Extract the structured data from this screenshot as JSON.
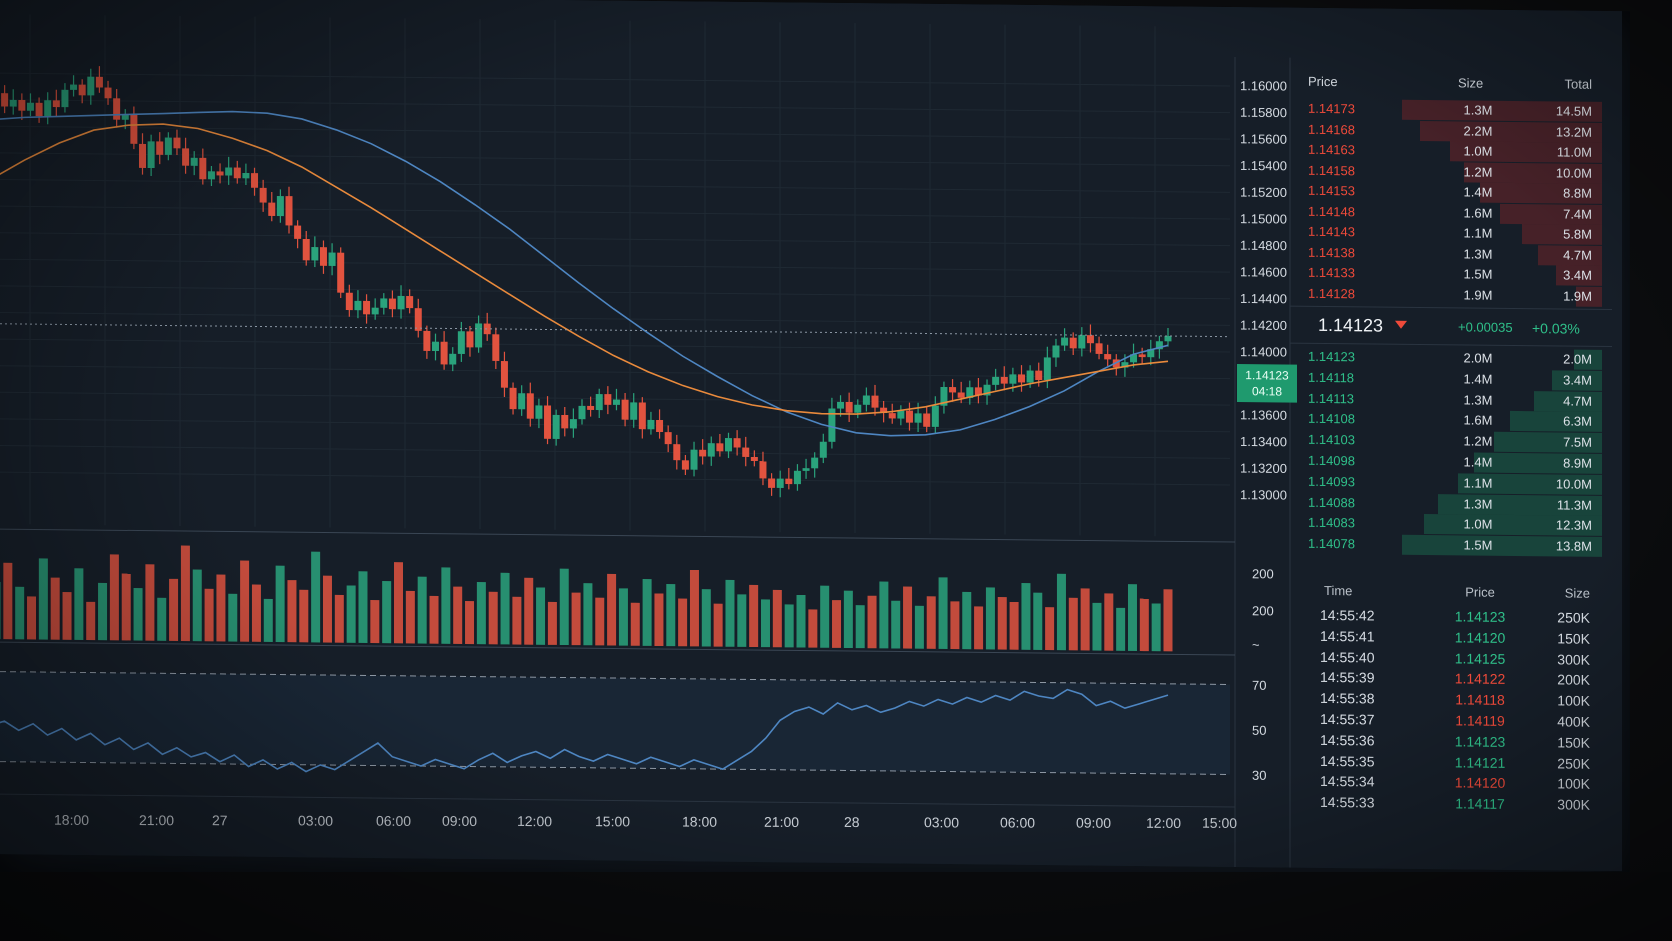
{
  "colors": {
    "up": "#2aa37c",
    "down": "#e2533f",
    "ma_fast": "#4e86c2",
    "ma_slow": "#e98a3c",
    "rsi": "#4e86c2",
    "grid": "#1f2933",
    "background": "#161e28"
  },
  "price_axis": {
    "ticks": [
      "1.16000",
      "1.15800",
      "1.15600",
      "1.15400",
      "1.15200",
      "1.15000",
      "1.14800",
      "1.14600",
      "1.14400",
      "1.14200",
      "1.14000",
      "1.13800",
      "1.13600",
      "1.13400",
      "1.13200",
      "1.13000"
    ]
  },
  "last_price_label": {
    "price": "1.14123",
    "countdown": "04:18"
  },
  "volume_axis": {
    "ticks": [
      "200",
      "200",
      "~"
    ]
  },
  "rsi_axis": {
    "ticks": [
      "70",
      "50",
      "30"
    ]
  },
  "time_axis": {
    "ticks": [
      "18:00",
      "21:00",
      "27",
      "03:00",
      "06:00",
      "09:00",
      "12:00",
      "15:00",
      "18:00",
      "21:00",
      "28",
      "03:00",
      "06:00",
      "09:00",
      "12:00",
      "15:00"
    ]
  },
  "order_book": {
    "headers": {
      "price": "Price",
      "size": "Size",
      "total": "Total"
    },
    "asks": [
      {
        "price": "1.14173",
        "size": "1.3M",
        "total": "14.5M",
        "depth": 1.0
      },
      {
        "price": "1.14168",
        "size": "2.2M",
        "total": "13.2M",
        "depth": 0.91
      },
      {
        "price": "1.14163",
        "size": "1.0M",
        "total": "11.0M",
        "depth": 0.76
      },
      {
        "price": "1.14158",
        "size": "1.2M",
        "total": "10.0M",
        "depth": 0.69
      },
      {
        "price": "1.14153",
        "size": "1.4M",
        "total": "8.8M",
        "depth": 0.61
      },
      {
        "price": "1.14148",
        "size": "1.6M",
        "total": "7.4M",
        "depth": 0.51
      },
      {
        "price": "1.14143",
        "size": "1.1M",
        "total": "5.8M",
        "depth": 0.4
      },
      {
        "price": "1.14138",
        "size": "1.3M",
        "total": "4.7M",
        "depth": 0.32
      },
      {
        "price": "1.14133",
        "size": "1.5M",
        "total": "3.4M",
        "depth": 0.23
      },
      {
        "price": "1.14128",
        "size": "1.9M",
        "total": "1.9M",
        "depth": 0.13
      }
    ],
    "mid": {
      "price": "1.14123",
      "change": "+0.00035",
      "change_pct": "+0.03%"
    },
    "bids": [
      {
        "price": "1.14123",
        "size": "2.0M",
        "total": "2.0M",
        "depth": 0.14
      },
      {
        "price": "1.14118",
        "size": "1.4M",
        "total": "3.4M",
        "depth": 0.25
      },
      {
        "price": "1.14113",
        "size": "1.3M",
        "total": "4.7M",
        "depth": 0.34
      },
      {
        "price": "1.14108",
        "size": "1.6M",
        "total": "6.3M",
        "depth": 0.46
      },
      {
        "price": "1.14103",
        "size": "1.2M",
        "total": "7.5M",
        "depth": 0.54
      },
      {
        "price": "1.14098",
        "size": "1.4M",
        "total": "8.9M",
        "depth": 0.64
      },
      {
        "price": "1.14093",
        "size": "1.1M",
        "total": "10.0M",
        "depth": 0.72
      },
      {
        "price": "1.14088",
        "size": "1.3M",
        "total": "11.3M",
        "depth": 0.82
      },
      {
        "price": "1.14083",
        "size": "1.0M",
        "total": "12.3M",
        "depth": 0.89
      },
      {
        "price": "1.14078",
        "size": "1.5M",
        "total": "13.8M",
        "depth": 1.0
      }
    ]
  },
  "trades": {
    "headers": {
      "time": "Time",
      "price": "Price",
      "size": "Size"
    },
    "rows": [
      {
        "time": "14:55:42",
        "price": "1.14123",
        "side": "buy",
        "size": "250K"
      },
      {
        "time": "14:55:41",
        "price": "1.14120",
        "side": "buy",
        "size": "150K"
      },
      {
        "time": "14:55:40",
        "price": "1.14125",
        "side": "buy",
        "size": "300K"
      },
      {
        "time": "14:55:39",
        "price": "1.14122",
        "side": "sell",
        "size": "200K"
      },
      {
        "time": "14:55:38",
        "price": "1.14118",
        "side": "sell",
        "size": "100K"
      },
      {
        "time": "14:55:37",
        "price": "1.14119",
        "side": "sell",
        "size": "400K"
      },
      {
        "time": "14:55:36",
        "price": "1.14123",
        "side": "buy",
        "size": "150K"
      },
      {
        "time": "14:55:35",
        "price": "1.14121",
        "side": "buy",
        "size": "250K"
      },
      {
        "time": "14:55:34",
        "price": "1.14120",
        "side": "sell",
        "size": "100K"
      },
      {
        "time": "14:55:33",
        "price": "1.14117",
        "side": "buy",
        "size": "300K"
      }
    ]
  },
  "chart_data": [
    {
      "type": "candlestick",
      "title": "",
      "ylim": [
        1.13,
        1.16
      ],
      "close": [
        1.1585,
        1.1575,
        1.158,
        1.1572,
        1.1578,
        1.1568,
        1.158,
        1.1575,
        1.1588,
        1.1592,
        1.1584,
        1.1598,
        1.159,
        1.1582,
        1.1566,
        1.157,
        1.1548,
        1.153,
        1.155,
        1.154,
        1.1553,
        1.1545,
        1.1532,
        1.1538,
        1.1522,
        1.1528,
        1.1525,
        1.1531,
        1.1523,
        1.1527,
        1.1516,
        1.1505,
        1.1495,
        1.151,
        1.1488,
        1.1478,
        1.1462,
        1.1472,
        1.1458,
        1.1468,
        1.1438,
        1.1425,
        1.1432,
        1.1422,
        1.1427,
        1.1434,
        1.1426,
        1.1436,
        1.1427,
        1.141,
        1.1395,
        1.1402,
        1.1385,
        1.1393,
        1.141,
        1.1398,
        1.1416,
        1.1408,
        1.1388,
        1.1368,
        1.1352,
        1.1364,
        1.1345,
        1.1355,
        1.133,
        1.1348,
        1.1338,
        1.1345,
        1.1355,
        1.1352,
        1.1364,
        1.1356,
        1.136,
        1.1345,
        1.1358,
        1.1338,
        1.1345,
        1.1336,
        1.1327,
        1.1315,
        1.1308,
        1.1323,
        1.1318,
        1.1328,
        1.1322,
        1.1332,
        1.1325,
        1.1318,
        1.1315,
        1.1302,
        1.1295,
        1.1302,
        1.1298,
        1.1308,
        1.131,
        1.1318,
        1.133,
        1.1355,
        1.136,
        1.1352,
        1.1358,
        1.1365,
        1.1356,
        1.1352,
        1.1348,
        1.1354,
        1.1345,
        1.1352,
        1.1342,
        1.1358,
        1.1372,
        1.1368,
        1.1364,
        1.1372,
        1.1366,
        1.1374,
        1.138,
        1.1375,
        1.1382,
        1.1376,
        1.1385,
        1.1378,
        1.1395,
        1.1404,
        1.141,
        1.1402,
        1.1412,
        1.1406,
        1.1398,
        1.1394,
        1.1388,
        1.1392,
        1.1398,
        1.1396,
        1.1402,
        1.1408,
        1.1412
      ],
      "series": [
        {
          "name": "",
          "kind": "ma_fast",
          "values": [
            1.1565,
            1.1567,
            1.1568,
            1.1569,
            1.157,
            1.1571,
            1.1572,
            1.1573,
            1.1572,
            1.1568,
            1.156,
            1.155,
            1.1537,
            1.1522,
            1.1505,
            1.1487,
            1.1467,
            1.1447,
            1.1428,
            1.141,
            1.1393,
            1.1378,
            1.1364,
            1.1352,
            1.1343,
            1.1337,
            1.1335,
            1.1336,
            1.134,
            1.1348,
            1.1358,
            1.137,
            1.1385,
            1.1398,
            1.1405
          ]
        },
        {
          "name": "",
          "kind": "ma_slow",
          "values": [
            1.152,
            1.1535,
            1.1548,
            1.1558,
            1.1562,
            1.1563,
            1.156,
            1.1553,
            1.1544,
            1.1532,
            1.1517,
            1.1502,
            1.1486,
            1.147,
            1.1454,
            1.1438,
            1.1422,
            1.1407,
            1.1393,
            1.1381,
            1.1371,
            1.1363,
            1.1357,
            1.1353,
            1.1351,
            1.1351,
            1.1353,
            1.1357,
            1.1363,
            1.1369,
            1.1375,
            1.138,
            1.1385,
            1.139,
            1.1393
          ]
        }
      ]
    },
    {
      "type": "bar",
      "title": "",
      "values": [
        120,
        160,
        110,
        90,
        170,
        130,
        100,
        150,
        80,
        120,
        180,
        140,
        110,
        160,
        90,
        130,
        200,
        150,
        110,
        140,
        100,
        170,
        120,
        90,
        160,
        130,
        110,
        190,
        140,
        100,
        120,
        150,
        90,
        130,
        170,
        110,
        140,
        100,
        160,
        120,
        90,
        130,
        110,
        150,
        100,
        140,
        120,
        90,
        160,
        110,
        130,
        100,
        150,
        120,
        90,
        140,
        110,
        130,
        100,
        160,
        120,
        90,
        140,
        110,
        130,
        100,
        120,
        90,
        110,
        80,
        130,
        100,
        120,
        90,
        110,
        140,
        100,
        130,
        90,
        110,
        150,
        100,
        120,
        90,
        130,
        110,
        100,
        140,
        120,
        90,
        160,
        110,
        130,
        100,
        120,
        90,
        140,
        110,
        100,
        130
      ],
      "direction": [
        "u",
        "d",
        "u",
        "d",
        "u",
        "d",
        "d",
        "u",
        "d",
        "u",
        "d",
        "d",
        "u",
        "d",
        "u",
        "d",
        "d",
        "u",
        "d",
        "d",
        "u",
        "d",
        "d",
        "u",
        "u",
        "d",
        "d",
        "u",
        "d",
        "d",
        "u",
        "u",
        "d",
        "u",
        "d",
        "d",
        "u",
        "d",
        "u",
        "d",
        "d",
        "u",
        "d",
        "u",
        "d",
        "d",
        "u",
        "d",
        "u",
        "d",
        "u",
        "d",
        "d",
        "u",
        "d",
        "u",
        "d",
        "u",
        "d",
        "d",
        "u",
        "d",
        "u",
        "u",
        "d",
        "u",
        "d",
        "u",
        "u",
        "d",
        "u",
        "d",
        "u",
        "u",
        "d",
        "u",
        "u",
        "d",
        "u",
        "d",
        "u",
        "d",
        "u",
        "d",
        "u",
        "d",
        "d",
        "u",
        "u",
        "d",
        "u",
        "d",
        "d",
        "u",
        "d",
        "u",
        "u",
        "d",
        "u",
        "d"
      ]
    },
    {
      "type": "line",
      "title": "",
      "ylim": [
        20,
        80
      ],
      "values": [
        46,
        48,
        44,
        47,
        42,
        45,
        40,
        43,
        38,
        41,
        36,
        39,
        34,
        37,
        33,
        35,
        31,
        34,
        29,
        32,
        28,
        31,
        27,
        30,
        28,
        32,
        36,
        40,
        34,
        32,
        30,
        33,
        31,
        29,
        33,
        36,
        32,
        35,
        37,
        34,
        38,
        35,
        33,
        36,
        34,
        32,
        35,
        33,
        31,
        34,
        32,
        30,
        34,
        38,
        44,
        52,
        56,
        58,
        55,
        60,
        57,
        59,
        56,
        58,
        61,
        59,
        62,
        60,
        63,
        61,
        64,
        62,
        66,
        64,
        63,
        67,
        65,
        60,
        62,
        59,
        61,
        63,
        65
      ]
    }
  ]
}
